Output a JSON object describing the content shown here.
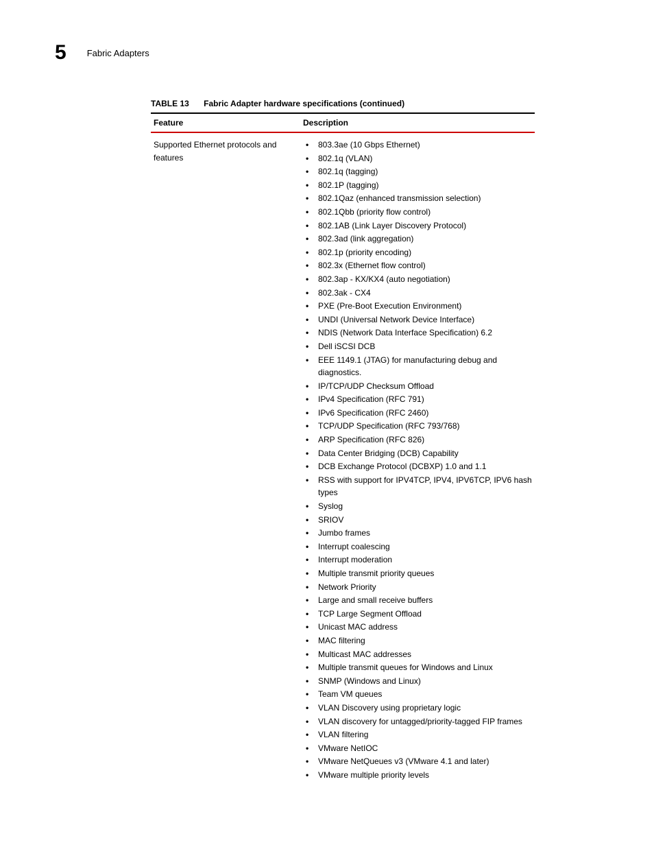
{
  "header": {
    "chapter_number": "5",
    "title": "Fabric Adapters"
  },
  "table": {
    "label": "TABLE 13",
    "title": "Fabric Adapter hardware specifications  (continued)",
    "columns": {
      "feature": "Feature",
      "description": "Description"
    },
    "row": {
      "feature": "Supported Ethernet protocols and features",
      "items": [
        "803.3ae (10 Gbps Ethernet)",
        "802.1q (VLAN)",
        "802.1q (tagging)",
        "802.1P (tagging)",
        "802.1Qaz (enhanced transmission selection)",
        "802.1Qbb (priority flow control)",
        "802.1AB (Link Layer Discovery Protocol)",
        "802.3ad (link aggregation)",
        "802.1p (priority encoding)",
        "802.3x (Ethernet flow control)",
        "802.3ap - KX/KX4 (auto negotiation)",
        "802.3ak - CX4",
        "PXE (Pre-Boot Execution Environment)",
        "UNDI (Universal Network Device Interface)",
        "NDIS (Network Data Interface Specification) 6.2",
        "Dell iSCSI DCB",
        "EEE 1149.1 (JTAG) for manufacturing debug and diagnostics.",
        "IP/TCP/UDP Checksum Offload",
        "IPv4 Specification (RFC 791)",
        "IPv6 Specification (RFC 2460)",
        "TCP/UDP Specification (RFC 793/768)",
        "ARP Specification (RFC 826)",
        "Data Center Bridging (DCB) Capability",
        "DCB Exchange Protocol (DCBXP) 1.0 and 1.1",
        "RSS with support for IPV4TCP, IPV4, IPV6TCP, IPV6 hash types",
        "Syslog",
        "SRIOV",
        "Jumbo frames",
        "Interrupt coalescing",
        "Interrupt moderation",
        "Multiple transmit priority queues",
        "Network Priority",
        "Large and small receive buffers",
        "TCP Large Segment Offload",
        "Unicast MAC address",
        "MAC filtering",
        "Multicast MAC addresses",
        "Multiple transmit queues for Windows and Linux",
        "SNMP (Windows and Linux)",
        "Team VM queues",
        "VLAN Discovery using proprietary logic",
        "VLAN discovery for untagged/priority-tagged FIP frames",
        "VLAN filtering",
        "VMware NetIOC",
        "VMware NetQueues v3 (VMware 4.1 and later)",
        "VMware multiple priority levels"
      ]
    }
  },
  "colors": {
    "accent": "#cc0000",
    "text": "#000000",
    "background": "#ffffff"
  }
}
